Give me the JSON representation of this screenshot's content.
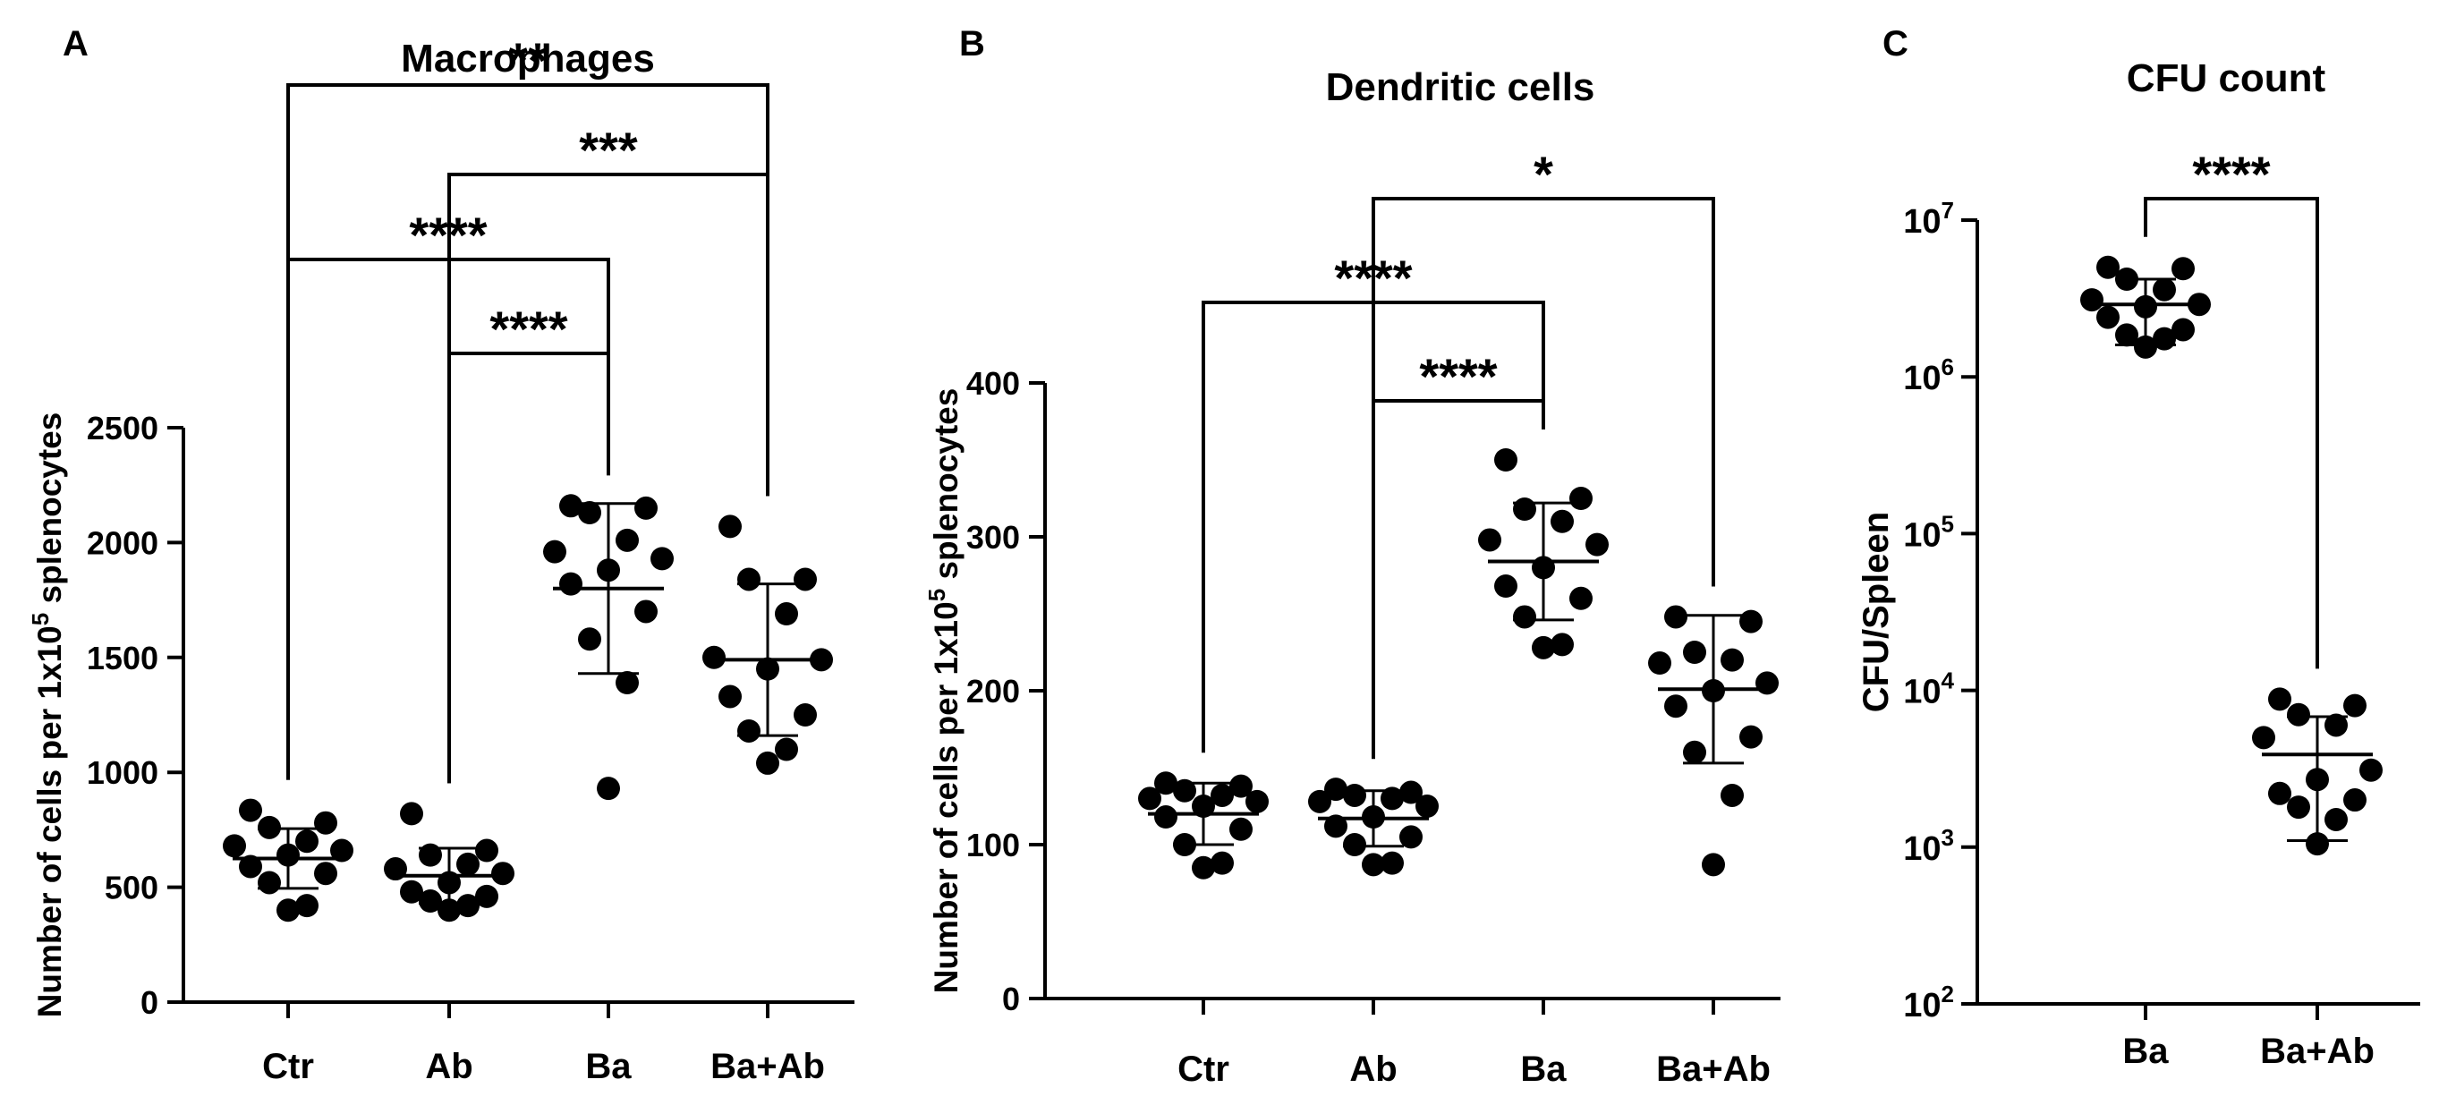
{
  "chart_data": [
    {
      "panel": "A",
      "type": "scatter",
      "title": "Macrophages",
      "ylabel_prefix": "Number of cells per 1x10",
      "ylabel_exp": "5",
      "ylabel_suffix": " splenocytes",
      "xlabel": "",
      "ylim": [
        0,
        2500
      ],
      "yticks": [
        0,
        500,
        1000,
        1500,
        2000,
        2500
      ],
      "categories": [
        "Ctr",
        "Ab",
        "Ba",
        "Ba+Ab"
      ],
      "series": [
        {
          "name": "Ctr",
          "values": [
            835,
            780,
            760,
            700,
            680,
            660,
            640,
            590,
            560,
            520,
            420,
            400
          ],
          "mean": 625,
          "sd": 130
        },
        {
          "name": "Ab",
          "values": [
            820,
            660,
            640,
            600,
            580,
            560,
            520,
            480,
            460,
            440,
            420,
            400
          ],
          "mean": 550,
          "sd": 120
        },
        {
          "name": "Ba",
          "values": [
            2160,
            2150,
            2130,
            2010,
            1960,
            1930,
            1880,
            1820,
            1700,
            1580,
            1390,
            930
          ],
          "mean": 1800,
          "sd": 370
        },
        {
          "name": "Ba+Ab",
          "values": [
            2070,
            1840,
            1840,
            1690,
            1500,
            1490,
            1450,
            1330,
            1250,
            1180,
            1100,
            1040
          ],
          "mean": 1490,
          "sd": 330
        }
      ],
      "comparisons": [
        {
          "from": "Ctr",
          "to": "Ba+Ab",
          "label": "**"
        },
        {
          "from": "Ab",
          "to": "Ba+Ab",
          "label": "***"
        },
        {
          "from": "Ctr",
          "to": "Ba",
          "label": "****"
        },
        {
          "from": "Ab",
          "to": "Ba",
          "label": "****"
        }
      ]
    },
    {
      "panel": "B",
      "type": "scatter",
      "title": "Dendritic cells",
      "ylabel_prefix": "Number of cells per 1x10",
      "ylabel_exp": "5",
      "ylabel_suffix": " splenocytes",
      "xlabel": "",
      "ylim": [
        0,
        400
      ],
      "yticks": [
        0,
        100,
        200,
        300,
        400
      ],
      "categories": [
        "Ctr",
        "Ab",
        "Ba",
        "Ba+Ab"
      ],
      "series": [
        {
          "name": "Ctr",
          "values": [
            140,
            138,
            135,
            132,
            130,
            128,
            125,
            118,
            110,
            100,
            88,
            85
          ],
          "mean": 120,
          "sd": 20
        },
        {
          "name": "Ab",
          "values": [
            136,
            134,
            132,
            130,
            128,
            125,
            118,
            112,
            105,
            100,
            88,
            87
          ],
          "mean": 117,
          "sd": 18
        },
        {
          "name": "Ba",
          "values": [
            350,
            325,
            318,
            310,
            298,
            295,
            280,
            268,
            260,
            248,
            230,
            228
          ],
          "mean": 284,
          "sd": 38
        },
        {
          "name": "Ba+Ab",
          "values": [
            248,
            245,
            225,
            220,
            218,
            205,
            200,
            190,
            170,
            160,
            132,
            87
          ],
          "mean": 201,
          "sd": 48
        }
      ],
      "comparisons": [
        {
          "from": "Ab",
          "to": "Ba+Ab",
          "label": "*"
        },
        {
          "from": "Ctr",
          "to": "Ba",
          "label": "****"
        },
        {
          "from": "Ab",
          "to": "Ba",
          "label": "****"
        }
      ]
    },
    {
      "panel": "C",
      "type": "scatter",
      "title": "CFU count",
      "ylabel": "CFU/Spleen",
      "xlabel": "",
      "yscale": "log",
      "ylim": [
        100,
        10000000
      ],
      "yticks": [
        {
          "base": "10",
          "exp": "2"
        },
        {
          "base": "10",
          "exp": "3"
        },
        {
          "base": "10",
          "exp": "4"
        },
        {
          "base": "10",
          "exp": "5"
        },
        {
          "base": "10",
          "exp": "6"
        },
        {
          "base": "10",
          "exp": "7"
        }
      ],
      "categories": [
        "Ba",
        "Ba+Ab"
      ],
      "series": [
        {
          "name": "Ba",
          "values": [
            5000000,
            4900000,
            4200000,
            3600000,
            3100000,
            2900000,
            2800000,
            2400000,
            2000000,
            1850000,
            1750000,
            1550000
          ],
          "mean": 2900000,
          "sd_low": 1600000,
          "sd_high": 4200000
        },
        {
          "name": "Ba+Ab",
          "values": [
            8800,
            8000,
            7000,
            6000,
            5000,
            3100,
            2700,
            2200,
            2000,
            1800,
            1500,
            1050
          ],
          "mean": 3900,
          "sd_low": 1100,
          "sd_high": 6800
        }
      ],
      "comparisons": [
        {
          "from": "Ba",
          "to": "Ba+Ab",
          "label": "****"
        }
      ]
    }
  ]
}
